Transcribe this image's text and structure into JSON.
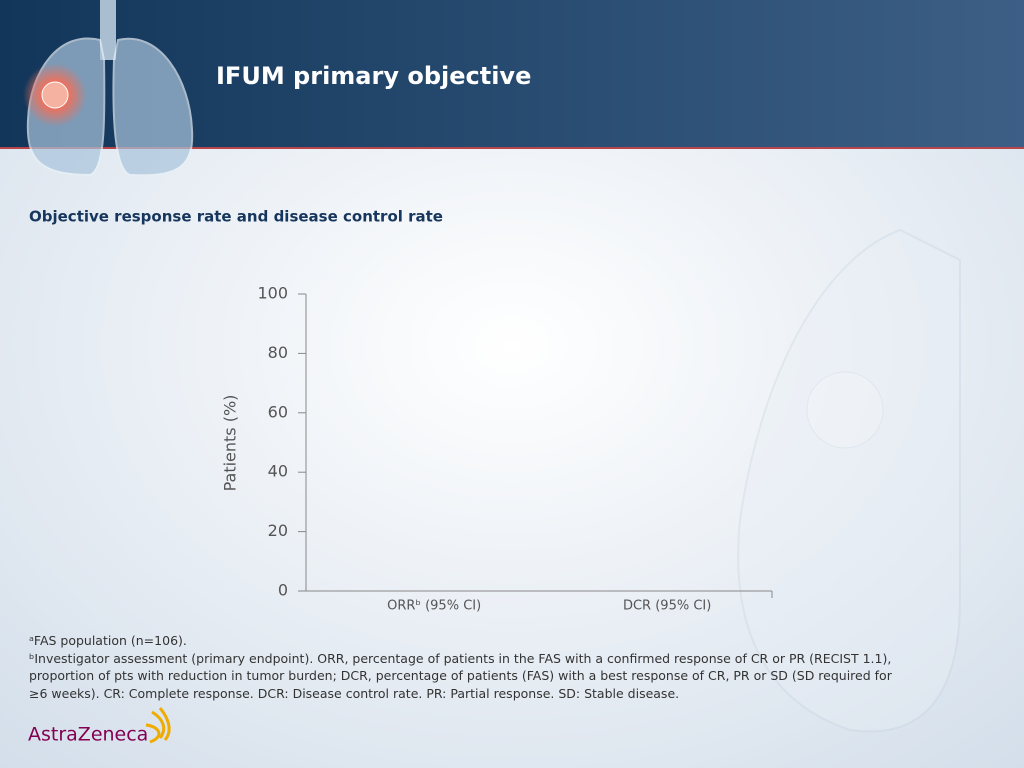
{
  "slide": {
    "title": "IFUM primary objective",
    "subtitle": "Objective response rate and disease control rate"
  },
  "chart_data": {
    "type": "bar",
    "categories": [
      "ORRᵇ (95% CI)",
      "DCR (95% CI)"
    ],
    "y_label": "Patients (%)",
    "ylim": [
      0,
      100
    ],
    "yticks": [
      0,
      20,
      40,
      60,
      80,
      100
    ]
  },
  "footnotes": [
    "ᵃFAS population (n=106).",
    "ᵇInvestigator assessment (primary endpoint). ORR, percentage of patients in the FAS with a confirmed response of CR or PR (RECIST 1.1), proportion of pts with reduction in tumor burden; DCR, percentage of patients (FAS) with a best response of CR, PR or SD (SD required for ≥6 weeks). CR: Complete response. DCR: Disease control rate. PR: Partial response. SD: Stable disease."
  ],
  "logo": "AstraZeneca"
}
